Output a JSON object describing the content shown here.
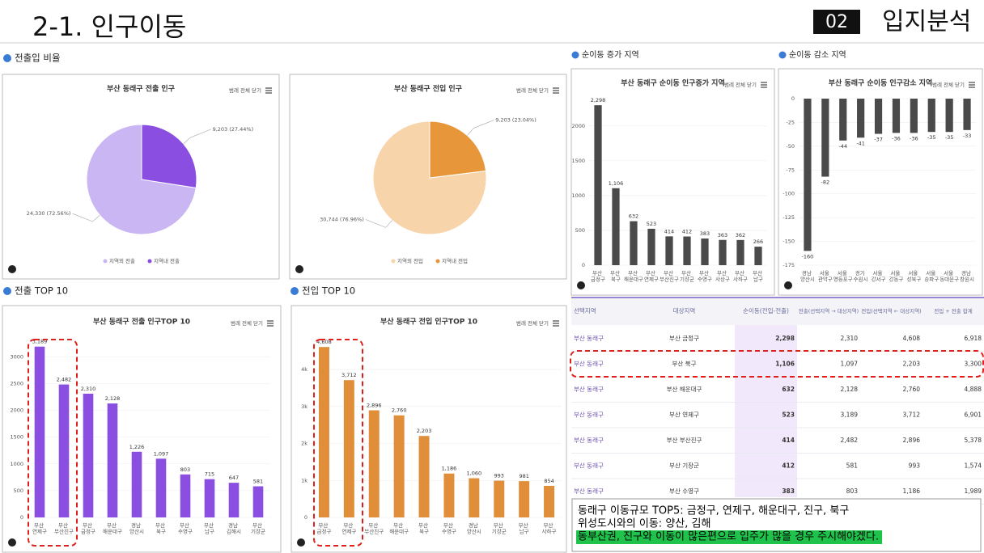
{
  "header": {
    "title": "2-1. 인구이동",
    "section_number": "02",
    "section_name": "입지분석"
  },
  "sections": [
    "전출입 비율",
    "순이동 증가 지역",
    "순이동 감소 지역",
    "전출 TOP 10",
    "전입 TOP 10"
  ],
  "legend_toggle": "범례 전체 닫기",
  "chart_data": [
    {
      "type": "pie",
      "title": "부산 동래구 전출 인구",
      "categories": [
        "지역외 전출",
        "지역내 전출"
      ],
      "values": [
        24330,
        9203
      ],
      "value_labels": [
        "24,330 (72.56%)",
        "9,203 (27.44%)"
      ],
      "colors": [
        "#c9b6f2",
        "#8a4fe0"
      ]
    },
    {
      "type": "pie",
      "title": "부산 동래구 전입 인구",
      "categories": [
        "지역외 전입",
        "지역내 전입"
      ],
      "values": [
        30744,
        9203
      ],
      "value_labels": [
        "30,744 (76.96%)",
        "9,203 (23.04%)"
      ],
      "colors": [
        "#f8d4aa",
        "#e8963a"
      ]
    },
    {
      "type": "bar",
      "title": "부산 동래구 순이동 인구증가 지역",
      "categories": [
        "부산 금정구",
        "부산 북구",
        "부산 해운대구",
        "부산 연제구",
        "부산 부산진구",
        "부산 기장군",
        "부산 수영구",
        "부산 사상구",
        "부산 사하구",
        "부산 남구"
      ],
      "values": [
        2298,
        1106,
        632,
        523,
        414,
        412,
        383,
        363,
        362,
        266
      ],
      "value_labels": [
        "2,298",
        "1,106",
        "632",
        "523",
        "414",
        "412",
        "383",
        "363",
        "362",
        "266"
      ],
      "color": "#4a4a4a",
      "ylim": [
        0,
        2300
      ],
      "yticks": [
        0,
        500,
        1000,
        1500,
        2000
      ]
    },
    {
      "type": "bar",
      "title": "부산 동래구 순이동 인구감소 지역",
      "categories": [
        "경남 양산시",
        "서울 관악구",
        "서울 영등포구",
        "경기 수원시",
        "서울 강서구",
        "서울 강동구",
        "서울 성북구",
        "서울 송파구",
        "서울 동대문구",
        "경남 창원시"
      ],
      "values": [
        -160,
        -82,
        -44,
        -41,
        -37,
        -36,
        -36,
        -35,
        -35,
        -33
      ],
      "color": "#4a4a4a",
      "ylim": [
        -175,
        0
      ],
      "yticks": [
        0,
        -25,
        -50,
        -75,
        -100,
        -125,
        -150,
        -175
      ]
    },
    {
      "type": "bar",
      "title": "부산 동래구 전출 인구TOP 10",
      "categories": [
        "부산 연제구",
        "부산 부산진구",
        "부산 금정구",
        "부산 해운대구",
        "경남 양산시",
        "부산 북구",
        "부산 수영구",
        "부산 남구",
        "경남 김해시",
        "부산 기장군"
      ],
      "values": [
        3189,
        2482,
        2310,
        2128,
        1226,
        1097,
        803,
        715,
        647,
        581
      ],
      "value_labels": [
        "3,189",
        "2,482",
        "2,310",
        "2,128",
        "1,226",
        "1,097",
        "803",
        "715",
        "647",
        "581"
      ],
      "color": "#8a4fe0",
      "ylim": [
        0,
        3200
      ],
      "yticks": [
        0,
        500,
        1000,
        1500,
        2000,
        2500,
        3000
      ]
    },
    {
      "type": "bar",
      "title": "부산 동래구 전입 인구TOP 10",
      "categories": [
        "부산 금정구",
        "부산 연제구",
        "부산 부산진구",
        "부산 해운대구",
        "부산 북구",
        "부산 수영구",
        "경남 양산시",
        "부산 기장군",
        "부산 남구",
        "부산 사하구"
      ],
      "values": [
        4608,
        3712,
        2896,
        2760,
        2203,
        1186,
        1060,
        993,
        981,
        854
      ],
      "value_labels": [
        "4,608",
        "3,712",
        "2,896",
        "2,760",
        "2,203",
        "1,186",
        "1,060",
        "993",
        "981",
        "854"
      ],
      "color": "#e08e3a",
      "ylim": [
        0,
        4700
      ],
      "yticks": [
        0,
        {
          "value": 1000,
          "label": "1k"
        },
        {
          "value": 2000,
          "label": "2k"
        },
        {
          "value": 3000,
          "label": "3k"
        },
        {
          "value": 4000,
          "label": "4k"
        }
      ]
    }
  ],
  "table": {
    "header": [
      "선택지역",
      "대상지역",
      "순이동(전입-전출)",
      "전출(선택지역 → 대상지역)",
      "전입(선택지역 ← 대상지역)",
      "전입 + 전출 합계"
    ],
    "rows": [
      [
        "부산 동래구",
        "부산 금정구",
        "2,298",
        "2,310",
        "4,608",
        "6,918"
      ],
      [
        "부산 동래구",
        "부산 북구",
        "1,106",
        "1,097",
        "2,203",
        "3,300"
      ],
      [
        "부산 동래구",
        "부산 해운대구",
        "632",
        "2,128",
        "2,760",
        "4,888"
      ],
      [
        "부산 동래구",
        "부산 연제구",
        "523",
        "3,189",
        "3,712",
        "6,901"
      ],
      [
        "부산 동래구",
        "부산 부산진구",
        "414",
        "2,482",
        "2,896",
        "5,378"
      ],
      [
        "부산 동래구",
        "부산 기장군",
        "412",
        "581",
        "993",
        "1,574"
      ],
      [
        "부산 동래구",
        "부산 수영구",
        "383",
        "803",
        "1,186",
        "1,989"
      ]
    ]
  },
  "note": [
    "동래구 이동규모 TOP5: 금정구, 연제구, 해운대구, 진구, 북구",
    "위성도시와의 이동: 양산, 김해",
    "동부산권, 진구와 이동이 많은편으로 입주가 많을 경우 주시해야겠다."
  ]
}
